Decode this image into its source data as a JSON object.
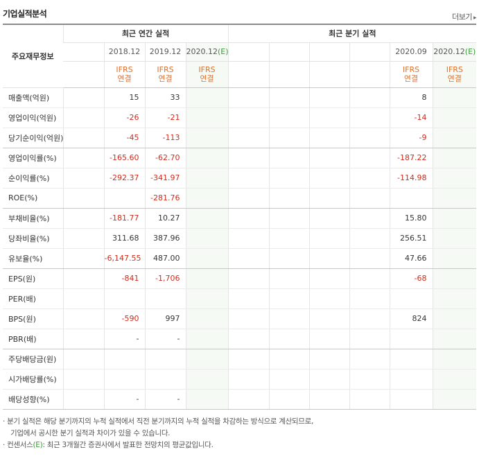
{
  "header": {
    "title": "기업실적분석",
    "more_label": "더보기",
    "more_arrow": "▸"
  },
  "table": {
    "row_header_label": "주요재무정보",
    "annual_title": "최근 연간 실적",
    "quarter_title": "최근 분기 실적",
    "annual_dates": [
      "",
      "2018.12",
      "2019.12",
      "2020.12"
    ],
    "annual_estimate_flags": [
      false,
      false,
      false,
      true
    ],
    "quarter_dates": [
      "",
      "",
      "",
      "",
      "2020.09",
      "2020.12"
    ],
    "quarter_estimate_flags": [
      false,
      false,
      false,
      false,
      false,
      true
    ],
    "estimate_mark": "(E)",
    "ifrs_line1": "IFRS",
    "ifrs_line2": "연결",
    "annual_ifrs_shown": [
      false,
      true,
      true,
      true
    ],
    "quarter_ifrs_shown": [
      false,
      false,
      false,
      false,
      true,
      true
    ],
    "rows": [
      {
        "label": "매출액(억원)",
        "annual": [
          "",
          "15",
          "33",
          ""
        ],
        "quarter": [
          "",
          "",
          "",
          "",
          "8",
          ""
        ]
      },
      {
        "label": "영업이익(억원)",
        "annual": [
          "",
          "-26",
          "-21",
          ""
        ],
        "quarter": [
          "",
          "",
          "",
          "",
          "-14",
          ""
        ]
      },
      {
        "label": "당기순이익(억원)",
        "annual": [
          "",
          "-45",
          "-113",
          ""
        ],
        "quarter": [
          "",
          "",
          "",
          "",
          "-9",
          ""
        ],
        "group_end": true
      },
      {
        "label": "영업이익률(%)",
        "annual": [
          "",
          "-165.60",
          "-62.70",
          ""
        ],
        "quarter": [
          "",
          "",
          "",
          "",
          "-187.22",
          ""
        ]
      },
      {
        "label": "순이익률(%)",
        "annual": [
          "",
          "-292.37",
          "-341.97",
          ""
        ],
        "quarter": [
          "",
          "",
          "",
          "",
          "-114.98",
          ""
        ]
      },
      {
        "label": "ROE(%)",
        "annual": [
          "",
          "",
          "-281.76",
          ""
        ],
        "quarter": [
          "",
          "",
          "",
          "",
          "",
          ""
        ],
        "group_end": true
      },
      {
        "label": "부채비율(%)",
        "annual": [
          "",
          "-181.77",
          "10.27",
          ""
        ],
        "quarter": [
          "",
          "",
          "",
          "",
          "15.80",
          ""
        ]
      },
      {
        "label": "당좌비율(%)",
        "annual": [
          "",
          "311.68",
          "387.96",
          ""
        ],
        "quarter": [
          "",
          "",
          "",
          "",
          "256.51",
          ""
        ]
      },
      {
        "label": "유보율(%)",
        "annual": [
          "",
          "-6,147.55",
          "487.00",
          ""
        ],
        "quarter": [
          "",
          "",
          "",
          "",
          "47.66",
          ""
        ],
        "group_end": true
      },
      {
        "label": "EPS(원)",
        "annual": [
          "",
          "-841",
          "-1,706",
          ""
        ],
        "quarter": [
          "",
          "",
          "",
          "",
          "-68",
          ""
        ]
      },
      {
        "label": "PER(배)",
        "annual": [
          "",
          "",
          "",
          ""
        ],
        "quarter": [
          "",
          "",
          "",
          "",
          "",
          ""
        ]
      },
      {
        "label": "BPS(원)",
        "annual": [
          "",
          "-590",
          "997",
          ""
        ],
        "quarter": [
          "",
          "",
          "",
          "",
          "824",
          ""
        ]
      },
      {
        "label": "PBR(배)",
        "annual": [
          "",
          "-",
          "-",
          ""
        ],
        "quarter": [
          "",
          "",
          "",
          "",
          "",
          ""
        ],
        "group_end": true
      },
      {
        "label": "주당배당금(원)",
        "annual": [
          "",
          "",
          "",
          ""
        ],
        "quarter": [
          "",
          "",
          "",
          "",
          "",
          ""
        ]
      },
      {
        "label": "시가배당률(%)",
        "annual": [
          "",
          "",
          "",
          ""
        ],
        "quarter": [
          "",
          "",
          "",
          "",
          "",
          ""
        ]
      },
      {
        "label": "배당성향(%)",
        "annual": [
          "",
          "-",
          "-",
          ""
        ],
        "quarter": [
          "",
          "",
          "",
          "",
          "",
          ""
        ],
        "last": true
      }
    ]
  },
  "notes": {
    "line1": "· 분기 실적은 해당 분기까지의 누적 실적에서 직전 분기까지의 누적 실적을 차감하는 방식으로 계산되므로,",
    "line2": "기업에서 공시한 분기 실적과 차이가 있을 수 있습니다.",
    "line3_prefix": "· 컨센서스",
    "line3_mark": "(E)",
    "line3_suffix": ": 최근 3개월간 증권사에서 발표한 전망치의 평균값입니다."
  },
  "colors": {
    "negative": "#d02b1c",
    "ifrs": "#e2702a",
    "estimate_bg": "#f5faf4",
    "estimate_mark": "#3a9a3a"
  }
}
